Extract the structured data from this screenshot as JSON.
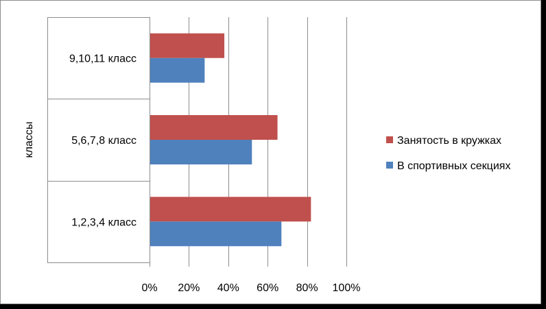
{
  "chart_data": {
    "type": "bar",
    "orientation": "horizontal",
    "categories": [
      "1,2,3,4 класс",
      "5,6,7,8 класс",
      "9,10,11 класс"
    ],
    "series": [
      {
        "name": "В спортивных секциях",
        "values": [
          0.67,
          0.52,
          0.28
        ],
        "color": "#4f81bd"
      },
      {
        "name": "Занятость в кружках",
        "values": [
          0.82,
          0.65,
          0.38
        ],
        "color": "#c0504d"
      }
    ],
    "xlim": [
      0,
      1
    ],
    "x_ticks": [
      0,
      0.2,
      0.4,
      0.6,
      0.8,
      1.0
    ],
    "x_tick_labels": [
      "0%",
      "20%",
      "40%",
      "60%",
      "80%",
      "100%"
    ],
    "ylabel": "классы",
    "xlabel": "",
    "title": "",
    "grid": "vertical",
    "legend_position": "right",
    "legend_order": [
      "Занятость в кружках",
      "В спортивных секциях"
    ]
  }
}
